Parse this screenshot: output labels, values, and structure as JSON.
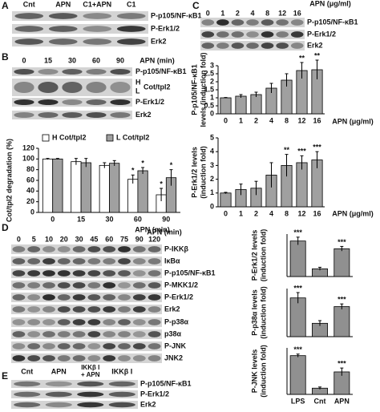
{
  "panels": {
    "A": {
      "letter": "A",
      "lanes": [
        "Cnt",
        "APN",
        "C1+APN",
        "C1"
      ],
      "rows": [
        "P-p105/NF-κB1",
        "P-Erk1/2",
        "Erk2"
      ]
    },
    "B": {
      "letter": "B",
      "unit": "APN (min)",
      "lanes": [
        "0",
        "15",
        "30",
        "60",
        "90"
      ],
      "rows": [
        "P-p105/NF-κB1",
        "Cot/tpl2",
        "P-Erk1/2",
        "Erk2"
      ],
      "bands": [
        "H",
        "L"
      ]
    },
    "C": {
      "letter": "C",
      "unit": "APN (μg/ml)",
      "lanes": [
        "0",
        "1",
        "2",
        "4",
        "8",
        "12",
        "16"
      ],
      "rows": [
        "P-p105/NF-κB1",
        "P-Erk1/2",
        "Erk2"
      ]
    },
    "D": {
      "letter": "D",
      "unit": "APN (min)",
      "lanes": [
        "0",
        "5",
        "10",
        "20",
        "30",
        "45",
        "60",
        "75",
        "90",
        "120"
      ],
      "rows": [
        "P-IKKβ",
        "IκBα",
        "P-p105/NF-κB1",
        "P-MKK1/2",
        "P-Erk1/2",
        "Erk2",
        "P-p38α",
        "p38α",
        "P-JNK",
        "JNK2"
      ]
    },
    "E": {
      "letter": "E",
      "lanes": [
        "Cnt",
        "APN",
        [
          "IKKβ I",
          "+ APN"
        ],
        "IKKβ I"
      ],
      "rows": [
        "P-p105/NF-κB1",
        "P-Erk1/2",
        "Erk2"
      ]
    }
  },
  "chart_data": [
    {
      "type": "bar",
      "categories": [
        "0",
        "15",
        "30",
        "60",
        "90"
      ],
      "series": [
        {
          "name": "H Cot/tpl2",
          "color": "#ffffff",
          "values": [
            100,
            95,
            88,
            62,
            33
          ],
          "errors": [
            1,
            6,
            5,
            8,
            12
          ],
          "significance": [
            null,
            null,
            null,
            "*",
            "*"
          ]
        },
        {
          "name": "L Cot/tpl2",
          "color": "#a0a0a0",
          "values": [
            100,
            93,
            92,
            78,
            65
          ],
          "errors": [
            1,
            8,
            5,
            6,
            15
          ],
          "significance": [
            null,
            null,
            null,
            "*",
            "*"
          ]
        }
      ],
      "ylim": [
        0,
        120
      ],
      "yticks": [
        0,
        20,
        40,
        60,
        80,
        100,
        120
      ],
      "ylabel": [
        "Cot/tpl2 degradation (%)"
      ],
      "xlabel": "APN (min)"
    },
    {
      "type": "bar",
      "categories": [
        "0",
        "1",
        "2",
        "4",
        "8",
        "12",
        "16"
      ],
      "series": [
        {
          "color": "#a0a0a0",
          "values": [
            1,
            1.1,
            1.2,
            1.6,
            2.1,
            2.7,
            2.75
          ],
          "errors": [
            0.02,
            0.1,
            0.15,
            0.3,
            0.4,
            0.5,
            0.6
          ],
          "significance": [
            null,
            null,
            null,
            null,
            null,
            "**",
            "**"
          ]
        }
      ],
      "ylim": [
        0,
        3
      ],
      "yticks": [
        0,
        0.5,
        1,
        1.5,
        2,
        2.5,
        3
      ],
      "ylabel": [
        "P-p105/NF-κB1",
        "levels (induction fold)"
      ],
      "xlabel": "APN (μg/ml)"
    },
    {
      "type": "bar",
      "categories": [
        "0",
        "1",
        "2",
        "4",
        "8",
        "12",
        "16"
      ],
      "series": [
        {
          "color": "#a0a0a0",
          "values": [
            1,
            1.25,
            1.35,
            2.3,
            3.0,
            3.2,
            3.4
          ],
          "errors": [
            0.05,
            0.4,
            0.5,
            0.9,
            0.8,
            0.5,
            0.6
          ],
          "significance": [
            null,
            null,
            null,
            null,
            "**",
            "***",
            "***"
          ]
        }
      ],
      "ylim": [
        0,
        5
      ],
      "yticks": [
        0,
        1,
        2,
        3,
        4,
        5
      ],
      "ylabel": [
        "P-Erk1/2 levels",
        "(induction fold)"
      ],
      "xlabel": "APN (μg/ml)"
    },
    {
      "type": "bar",
      "categories": [
        null,
        null,
        null
      ],
      "series": [
        {
          "color": "#909090",
          "values": [
            4.6,
            1,
            3.6
          ],
          "errors": [
            0.5,
            0.2,
            0.3
          ],
          "significance": [
            "***",
            null,
            "***"
          ]
        }
      ],
      "ylim": [
        0,
        5.5
      ],
      "ylabel": [
        "P-Erk1/2 levels",
        "(induction fold)"
      ]
    },
    {
      "type": "bar",
      "categories": [
        null,
        null,
        null
      ],
      "series": [
        {
          "color": "#909090",
          "values": [
            2.9,
            1,
            2.25
          ],
          "errors": [
            0.4,
            0.2,
            0.2
          ],
          "significance": [
            "***",
            null,
            "***"
          ]
        }
      ],
      "ylim": [
        0,
        3.6
      ],
      "ylabel": [
        "P-p38α levels",
        "(induction fold)"
      ]
    },
    {
      "type": "bar",
      "categories": [
        "LPS",
        "Cnt",
        "APN"
      ],
      "series": [
        {
          "color": "#909090",
          "values": [
            5,
            0.8,
            2.9
          ],
          "errors": [
            0.2,
            0.15,
            0.5
          ],
          "significance": [
            "***",
            null,
            "***"
          ]
        }
      ],
      "ylim": [
        0,
        6
      ],
      "ylabel": [
        "P-JNK levels",
        "(induction fold)"
      ]
    }
  ]
}
